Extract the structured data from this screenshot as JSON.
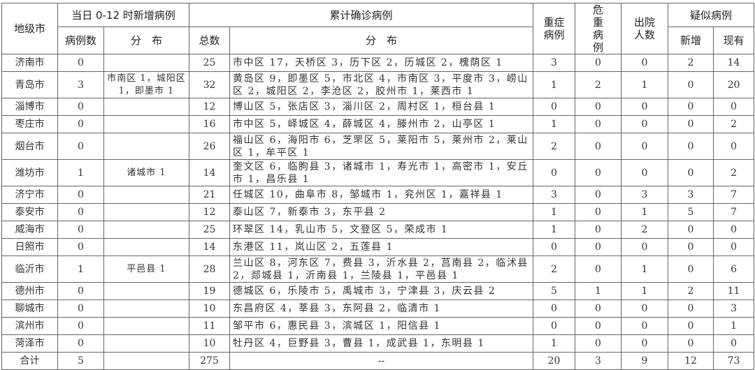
{
  "header": {
    "city": "地级市",
    "new_cases_group": "当日 0-12 时新增病例",
    "cumulative_group": "累计确诊病例",
    "severe": "重症病例",
    "critical": "危重病例",
    "discharged": "出院人数",
    "suspected_group": "疑似病例",
    "new_count": "病例数",
    "new_dist": "分　布",
    "total": "总数",
    "cum_dist": "分　布",
    "susp_new": "新增",
    "susp_current": "现有"
  },
  "rows": [
    {
      "city": "济南市",
      "new": "0",
      "new_dist": "",
      "total": "25",
      "dist": "市中区 17，天桥区 3，历下区 2，历城区 2，槐荫区 1",
      "severe": "3",
      "critical": "0",
      "discharged": "0",
      "susp_new": "2",
      "susp_current": "14"
    },
    {
      "city": "青岛市",
      "new": "3",
      "new_dist": "市南区 1，城阳区 1，即墨市 1",
      "total": "32",
      "dist": "黄岛区 9，即墨区 5，市北区 4，市南区 3，平度市 3，崂山区 2，城阳区 2，李沧区 2，胶州市 1，莱西市 1",
      "severe": "1",
      "critical": "2",
      "discharged": "1",
      "susp_new": "0",
      "susp_current": "20"
    },
    {
      "city": "淄博市",
      "new": "0",
      "new_dist": "",
      "total": "12",
      "dist": "博山区 5，张店区 3，淄川区 2，周村区 1，桓台县 1",
      "severe": "0",
      "critical": "0",
      "discharged": "0",
      "susp_new": "0",
      "susp_current": "0"
    },
    {
      "city": "枣庄市",
      "new": "0",
      "new_dist": "",
      "total": "16",
      "dist": "市中区 5，峄城区 4，薛城区 4，滕州市 2，山亭区 1",
      "severe": "1",
      "critical": "0",
      "discharged": "0",
      "susp_new": "0",
      "susp_current": "2"
    },
    {
      "city": "烟台市",
      "new": "0",
      "new_dist": "",
      "total": "26",
      "dist": "福山区 6，海阳市 6，芝罘区 5，莱阳市 5，莱州市 2，莱山区 1，牟平区 1",
      "severe": "2",
      "critical": "0",
      "discharged": "0",
      "susp_new": "0",
      "susp_current": "0"
    },
    {
      "city": "潍坊市",
      "new": "1",
      "new_dist": "诸城市 1",
      "total": "14",
      "dist": "奎文区 6，临朐县 3，诸城市 1，寿光市 1，高密市 1，安丘市 1，昌乐县 1",
      "severe": "0",
      "critical": "0",
      "discharged": "0",
      "susp_new": "0",
      "susp_current": "2"
    },
    {
      "city": "济宁市",
      "new": "0",
      "new_dist": "",
      "total": "21",
      "dist": "任城区 10，曲阜市 8，邹城市 1，兖州区 1，嘉祥县 1",
      "severe": "3",
      "critical": "0",
      "discharged": "3",
      "susp_new": "3",
      "susp_current": "7"
    },
    {
      "city": "泰安市",
      "new": "0",
      "new_dist": "",
      "total": "12",
      "dist": "泰山区 7，新泰市 3，东平县 2",
      "severe": "1",
      "critical": "0",
      "discharged": "1",
      "susp_new": "5",
      "susp_current": "7"
    },
    {
      "city": "威海市",
      "new": "0",
      "new_dist": "",
      "total": "25",
      "dist": "环翠区 14，乳山市 5，文登区 5，荣成市 1",
      "severe": "1",
      "critical": "0",
      "discharged": "2",
      "susp_new": "0",
      "susp_current": "0"
    },
    {
      "city": "日照市",
      "new": "0",
      "new_dist": "",
      "total": "14",
      "dist": "东港区 11，岚山区 2，五莲县 1",
      "severe": "0",
      "critical": "0",
      "discharged": "0",
      "susp_new": "0",
      "susp_current": "0"
    },
    {
      "city": "临沂市",
      "new": "1",
      "new_dist": "平邑县 1",
      "total": "28",
      "dist": "兰山区 8，河东区 7，费县 3，沂水县 2，莒南县 2，临沭县 2，郯城县 1，沂南县 1，兰陵县 1，平邑县 1",
      "severe": "2",
      "critical": "0",
      "discharged": "1",
      "susp_new": "0",
      "susp_current": "6"
    },
    {
      "city": "德州市",
      "new": "0",
      "new_dist": "",
      "total": "19",
      "dist": "德城区 6，乐陵市 5，禹城市 3，宁津县 3，庆云县 2",
      "severe": "5",
      "critical": "1",
      "discharged": "1",
      "susp_new": "2",
      "susp_current": "11"
    },
    {
      "city": "聊城市",
      "new": "0",
      "new_dist": "",
      "total": "10",
      "dist": "东昌府区 4，莘县 3，东阿县 2，临清市 1",
      "severe": "0",
      "critical": "0",
      "discharged": "0",
      "susp_new": "0",
      "susp_current": "3"
    },
    {
      "city": "滨州市",
      "new": "0",
      "new_dist": "",
      "total": "11",
      "dist": "邹平市 6，惠民县 3，滨城区 1，阳信县 1",
      "severe": "0",
      "critical": "0",
      "discharged": "0",
      "susp_new": "0",
      "susp_current": "1"
    },
    {
      "city": "菏泽市",
      "new": "0",
      "new_dist": "",
      "total": "10",
      "dist": "牡丹区 4，巨野县 3，曹县 1，成武县 1，东明县 1",
      "severe": "1",
      "critical": "0",
      "discharged": "0",
      "susp_new": "0",
      "susp_current": "0"
    }
  ],
  "total_row": {
    "city": "合计",
    "new": "5",
    "new_dist": "",
    "total": "275",
    "dist": "--",
    "severe": "20",
    "critical": "3",
    "discharged": "9",
    "susp_new": "12",
    "susp_current": "73"
  }
}
